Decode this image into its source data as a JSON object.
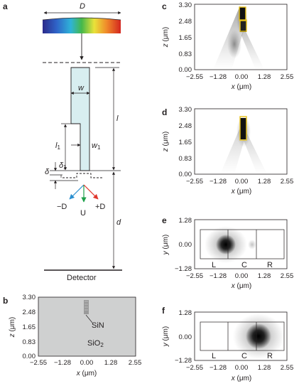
{
  "panel_labels": [
    "a",
    "b",
    "c",
    "d",
    "e",
    "f"
  ],
  "schematic": {
    "D": "D",
    "w": "w",
    "w1": "w",
    "w1_sub": "1",
    "l": "l",
    "l1": "l",
    "l1_sub": "1",
    "delta": "δ",
    "delta1": "δ",
    "delta1_sub": "1",
    "d": "d",
    "arrow_minus": "−D",
    "arrow_u": "U",
    "arrow_plus": "+D",
    "detector": "Detector",
    "colors": {
      "minus": "#2b8fd0",
      "u": "#1ea04a",
      "plus": "#e0352b",
      "guide_fill": "#d8eef0"
    }
  },
  "panel_b": {
    "ylabel_var": "z",
    "ylabel_unit": " (μm)",
    "xlabel_var": "x",
    "xlabel_unit": " (μm)",
    "yticks": [
      "3.30",
      "2.48",
      "1.65",
      "0.83",
      "0.00"
    ],
    "xticks": [
      "−2.55",
      "−1.28",
      "0.00",
      "1.28",
      "2.55"
    ],
    "label_sin": "SiN",
    "label_sio2": "SiO",
    "label_sio2_sub": "2",
    "background": "#cfd0d0"
  },
  "panel_c": {
    "ylabel_var": "z",
    "ylabel_unit": " (μm)",
    "xlabel_var": "x",
    "xlabel_unit": " (μm)",
    "yticks": [
      "3.30",
      "2.48",
      "1.65",
      "0.83",
      "0.00"
    ],
    "xticks": [
      "−2.55",
      "−1.28",
      "0.00",
      "1.28",
      "2.55"
    ]
  },
  "panel_d": {
    "ylabel_var": "z",
    "ylabel_unit": " (μm)",
    "xlabel_var": "x",
    "xlabel_unit": " (μm)",
    "yticks": [
      "3.30",
      "2.48",
      "1.65",
      "0.83",
      "0.00"
    ],
    "xticks": [
      "−2.55",
      "−1.28",
      "0.00",
      "1.28",
      "2.55"
    ]
  },
  "panel_e": {
    "ylabel_var": "y",
    "ylabel_unit": " (μm)",
    "xlabel_var": "x",
    "xlabel_unit": " (μm)",
    "yticks": [
      "1.28",
      "0.00",
      "−1.28"
    ],
    "xticks": [
      "−2.55",
      "−1.28",
      "0.00",
      "1.28",
      "2.55"
    ],
    "zones": [
      "L",
      "C",
      "R"
    ]
  },
  "panel_f": {
    "ylabel_var": "y",
    "ylabel_unit": " (μm)",
    "xlabel_var": "x",
    "xlabel_unit": " (μm)",
    "yticks": [
      "1.28",
      "0.00",
      "−1.28"
    ],
    "xticks": [
      "−2.55",
      "−1.28",
      "0.00",
      "1.28",
      "2.55"
    ],
    "zones": [
      "L",
      "C",
      "R"
    ]
  }
}
